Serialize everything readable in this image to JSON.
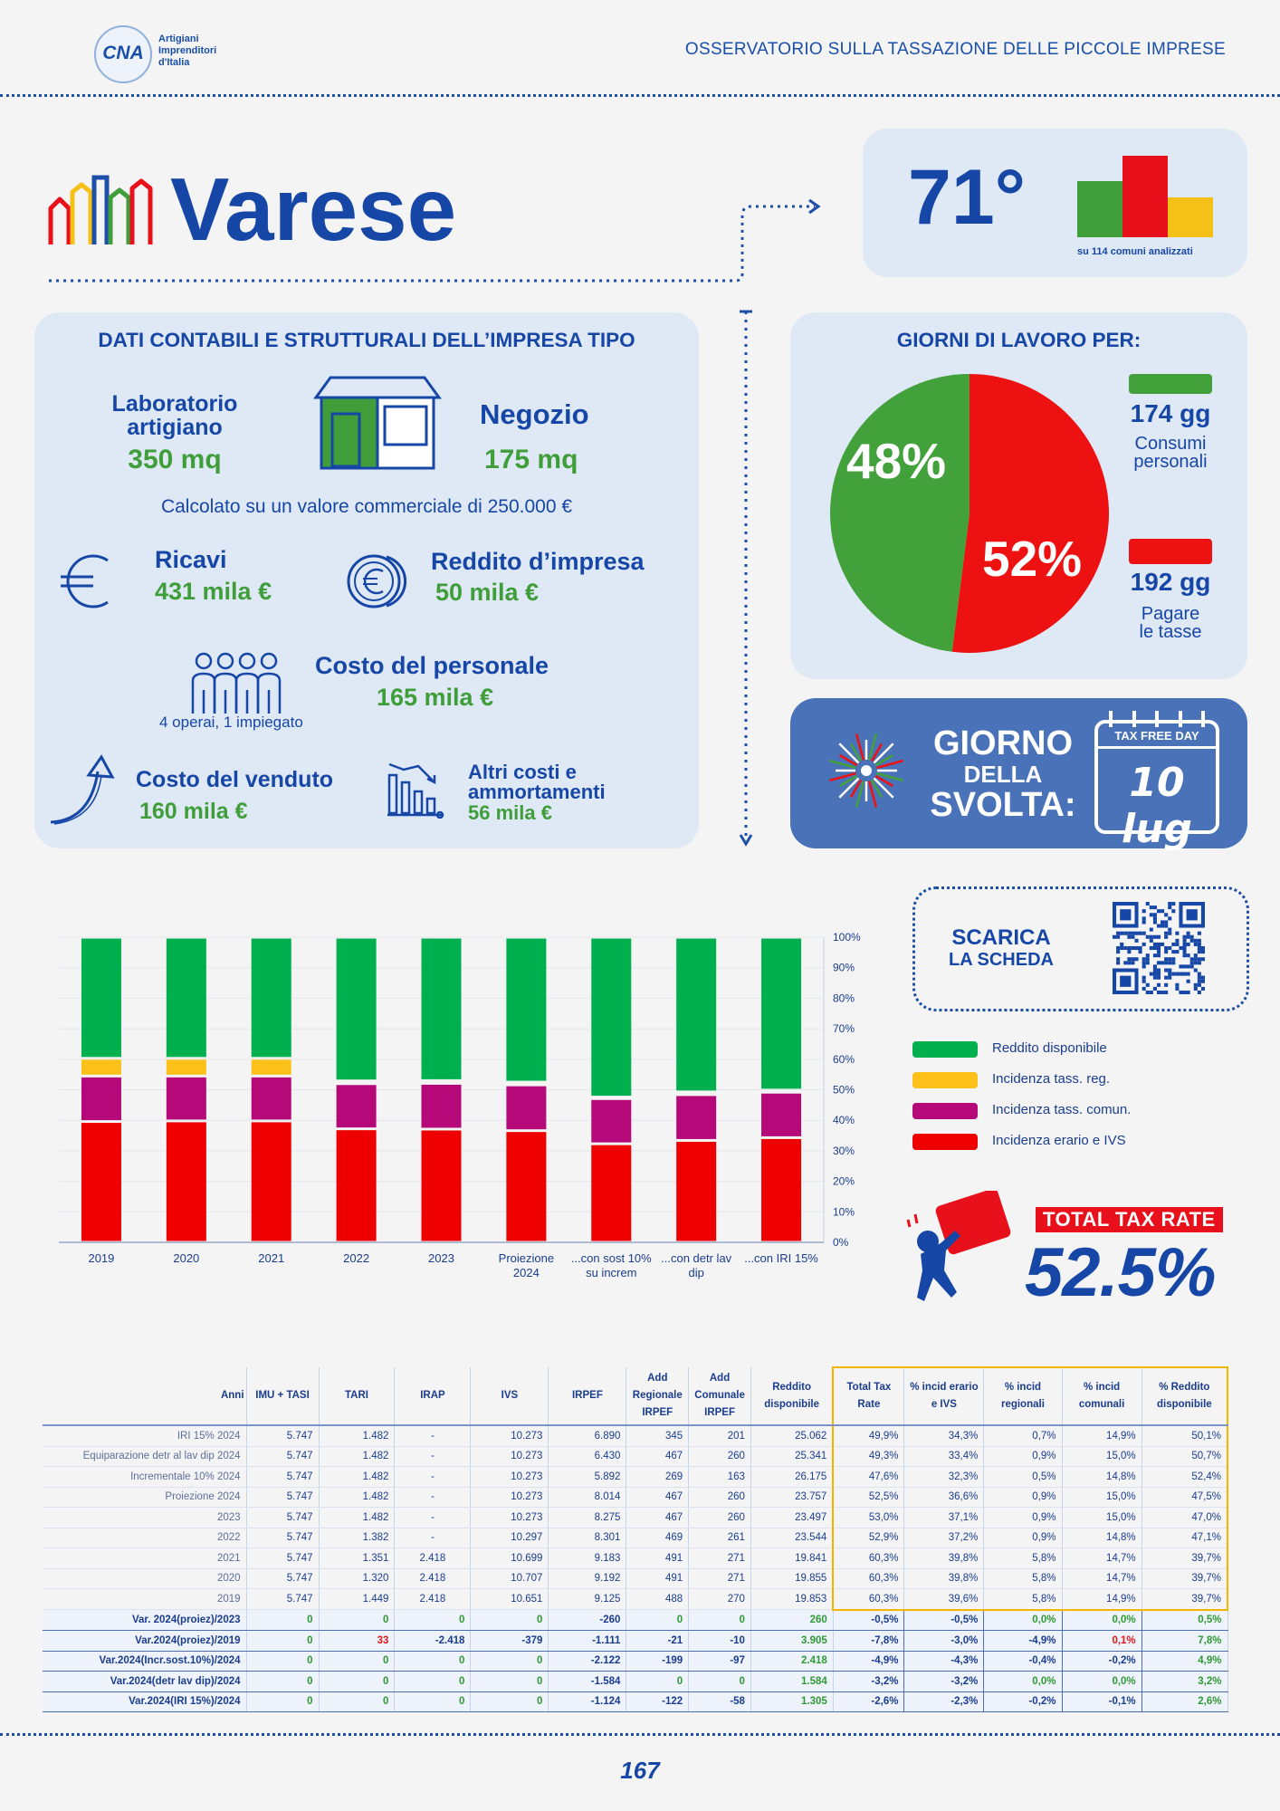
{
  "header": {
    "logo_text": "CNA",
    "logo_sub": [
      "Artigiani",
      "Imprenditori",
      "d'Italia"
    ],
    "title": "OSSERVATORIO SULLA TASSAZIONE DELLE PICCOLE IMPRESE"
  },
  "city": "Varese",
  "ranking": {
    "position": "71°",
    "note": "su 114 comuni analizzati",
    "bar_colors": [
      "#3f9e3a",
      "#e8101a",
      "#f6c116"
    ]
  },
  "company": {
    "section_title": "DATI CONTABILI E STRUTTURALI DELL’IMPRESA TIPO",
    "lab_label": "Laboratorio artigiano",
    "lab_value": "350 mq",
    "shop_label": "Negozio",
    "shop_value": "175 mq",
    "calc_note": "Calcolato su un valore commerciale di 250.000 €",
    "ricavi_label": "Ricavi",
    "ricavi_value": "431 mila €",
    "reddito_label": "Reddito d’impresa",
    "reddito_value": "50 mila €",
    "personale_label": "Costo del personale",
    "personale_value": "165 mila €",
    "personale_note": "4 operai, 1 impiegato",
    "venduto_label": "Costo del venduto",
    "venduto_value": "160 mila €",
    "altri_label1": "Altri costi e",
    "altri_label2": "ammortamenti",
    "altri_value": "56 mila €"
  },
  "workdays": {
    "title": "GIORNI DI LAVORO PER:",
    "green_pct": "48%",
    "red_pct": "52%",
    "green_share": 0.48,
    "consumi_days": "174 gg",
    "consumi_label1": "Consumi",
    "consumi_label2": "personali",
    "tasse_days": "192 gg",
    "tasse_label1": "Pagare",
    "tasse_label2": "le tasse",
    "colors": {
      "green": "#43a13b",
      "red": "#ee1111"
    }
  },
  "taxfree": {
    "l1": "GIORNO",
    "l2": "DELLA",
    "l3": "SVOLTA:",
    "badge": "TAX FREE DAY",
    "date": "10 lug"
  },
  "download": {
    "l1": "SCARICA",
    "l2": "LA SCHEDA"
  },
  "chart_data": {
    "type": "bar",
    "stacked": true,
    "categories": [
      "2019",
      "2020",
      "2021",
      "2022",
      "2023",
      "Proiezione 2024",
      "...con sost 10% su increm",
      "...con detr lav dip",
      "...con IRI 15%"
    ],
    "series": [
      {
        "name": "Incidenza erario e IVS",
        "color": "#ee0000",
        "values": [
          39.6,
          39.8,
          39.8,
          37.2,
          37.1,
          36.6,
          32.3,
          33.4,
          34.3
        ]
      },
      {
        "name": "Incidenza tass. comun.",
        "color": "#b5097a",
        "values": [
          14.9,
          14.7,
          14.7,
          14.8,
          15.0,
          15.0,
          14.8,
          15.0,
          14.9
        ]
      },
      {
        "name": "Incidenza tass. reg.",
        "color": "#fbc11a",
        "values": [
          5.8,
          5.8,
          5.8,
          0.9,
          0.9,
          0.9,
          0.5,
          0.9,
          0.7
        ]
      },
      {
        "name": "Reddito disponibile",
        "color": "#00b04f",
        "values": [
          39.7,
          39.7,
          39.7,
          47.1,
          47.0,
          47.5,
          52.4,
          50.7,
          50.1
        ]
      }
    ],
    "legend_order": [
      "Reddito disponibile",
      "Incidenza tass. reg.",
      "Incidenza tass. comun.",
      "Incidenza erario e IVS"
    ],
    "yticks": [
      "0%",
      "10%",
      "20%",
      "30%",
      "40%",
      "50%",
      "60%",
      "70%",
      "80%",
      "90%",
      "100%"
    ],
    "ylim": [
      0,
      100
    ],
    "legend": "right"
  },
  "total_tax": {
    "label": "TOTAL TAX RATE",
    "value": "52.5%"
  },
  "table": {
    "headers": [
      "Anni",
      "IMU + TASI",
      "TARI",
      "IRAP",
      "IVS",
      "IRPEF",
      "Add Regionale IRPEF",
      "Add Comunale IRPEF",
      "Reddito disponibile",
      "Total Tax Rate",
      "% incid erario e IVS",
      "% incid regionali",
      "% incid comunali",
      "% Reddito disponibile"
    ],
    "rows": [
      [
        "IRI 15% 2024",
        "5.747",
        "1.482",
        "-",
        "10.273",
        "6.890",
        "345",
        "201",
        "25.062",
        "49,9%",
        "34,3%",
        "0,7%",
        "14,9%",
        "50,1%"
      ],
      [
        "Equiparazione detr al lav dip 2024",
        "5.747",
        "1.482",
        "-",
        "10.273",
        "6.430",
        "467",
        "260",
        "25.341",
        "49,3%",
        "33,4%",
        "0,9%",
        "15,0%",
        "50,7%"
      ],
      [
        "Incrementale 10% 2024",
        "5.747",
        "1.482",
        "-",
        "10.273",
        "5.892",
        "269",
        "163",
        "26.175",
        "47,6%",
        "32,3%",
        "0,5%",
        "14,8%",
        "52,4%"
      ],
      [
        "Proiezione 2024",
        "5.747",
        "1.482",
        "-",
        "10.273",
        "8.014",
        "467",
        "260",
        "23.757",
        "52,5%",
        "36,6%",
        "0,9%",
        "15,0%",
        "47,5%"
      ],
      [
        "2023",
        "5.747",
        "1.482",
        "-",
        "10.273",
        "8.275",
        "467",
        "260",
        "23.497",
        "53,0%",
        "37,1%",
        "0,9%",
        "15,0%",
        "47,0%"
      ],
      [
        "2022",
        "5.747",
        "1.382",
        "-",
        "10.297",
        "8.301",
        "469",
        "261",
        "23.544",
        "52,9%",
        "37,2%",
        "0,9%",
        "14,8%",
        "47,1%"
      ],
      [
        "2021",
        "5.747",
        "1.351",
        "2.418",
        "10.699",
        "9.183",
        "491",
        "271",
        "19.841",
        "60,3%",
        "39,8%",
        "5,8%",
        "14,7%",
        "39,7%"
      ],
      [
        "2020",
        "5.747",
        "1.320",
        "2.418",
        "10.707",
        "9.192",
        "491",
        "271",
        "19.855",
        "60,3%",
        "39,8%",
        "5,8%",
        "14,7%",
        "39,7%"
      ],
      [
        "2019",
        "5.747",
        "1.449",
        "2.418",
        "10.651",
        "9.125",
        "488",
        "270",
        "19.853",
        "60,3%",
        "39,6%",
        "5,8%",
        "14,9%",
        "39,7%"
      ]
    ],
    "var_rows": [
      [
        "Var. 2024(proiez)/2023",
        "0",
        "0",
        "0",
        "0",
        "-260",
        "0",
        "0",
        "260",
        "-0,5%",
        "-0,5%",
        "0,0%",
        "0,0%",
        "0,5%"
      ],
      [
        "Var.2024(proiez)/2019",
        "0",
        "33",
        "-2.418",
        "-379",
        "-1.111",
        "-21",
        "-10",
        "3.905",
        "-7,8%",
        "-3,0%",
        "-4,9%",
        "0,1%",
        "7,8%"
      ],
      [
        "Var.2024(Incr.sost.10%)/2024",
        "0",
        "0",
        "0",
        "0",
        "-2.122",
        "-199",
        "-97",
        "2.418",
        "-4,9%",
        "-4,3%",
        "-0,4%",
        "-0,2%",
        "4,9%"
      ],
      [
        "Var.2024(detr lav dip)/2024",
        "0",
        "0",
        "0",
        "0",
        "-1.584",
        "0",
        "0",
        "1.584",
        "-3,2%",
        "-3,2%",
        "0,0%",
        "0,0%",
        "3,2%"
      ],
      [
        "Var.2024(IRI 15%)/2024",
        "0",
        "0",
        "0",
        "0",
        "-1.124",
        "-122",
        "-58",
        "1.305",
        "-2,6%",
        "-2,3%",
        "-0,2%",
        "-0,1%",
        "2,6%"
      ]
    ]
  },
  "page_number": "167"
}
